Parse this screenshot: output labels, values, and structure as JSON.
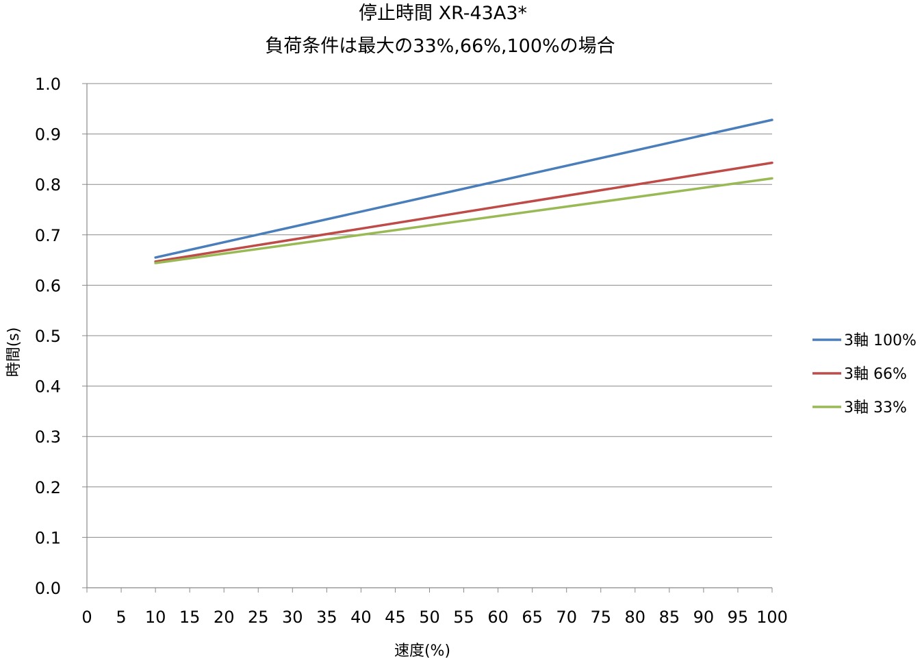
{
  "chart_data": {
    "type": "line",
    "title_line1": "停止時間 XR-43A3*",
    "title_line2": "負荷条件は最大の33%,66%,100%の場合",
    "xlabel": "速度(%)",
    "ylabel": "時間(s)",
    "xlim": [
      0,
      100
    ],
    "ylim": [
      0,
      1.0
    ],
    "x_ticks": [
      0,
      5,
      10,
      15,
      20,
      25,
      30,
      35,
      40,
      45,
      50,
      55,
      60,
      65,
      70,
      75,
      80,
      85,
      90,
      95,
      100
    ],
    "y_ticks": [
      "0.0",
      "0.1",
      "0.2",
      "0.3",
      "0.4",
      "0.5",
      "0.6",
      "0.7",
      "0.8",
      "0.9",
      "1.0"
    ],
    "grid": "horizontal",
    "legend_position": "right",
    "series": [
      {
        "name": "3軸 100%",
        "color": "#4a7ebb",
        "x": [
          10,
          100
        ],
        "values": [
          0.655,
          0.928
        ]
      },
      {
        "name": "3軸 66%",
        "color": "#be4b48",
        "x": [
          10,
          100
        ],
        "values": [
          0.647,
          0.843
        ]
      },
      {
        "name": "3軸 33%",
        "color": "#98b954",
        "x": [
          10,
          100
        ],
        "values": [
          0.644,
          0.812
        ]
      }
    ]
  }
}
